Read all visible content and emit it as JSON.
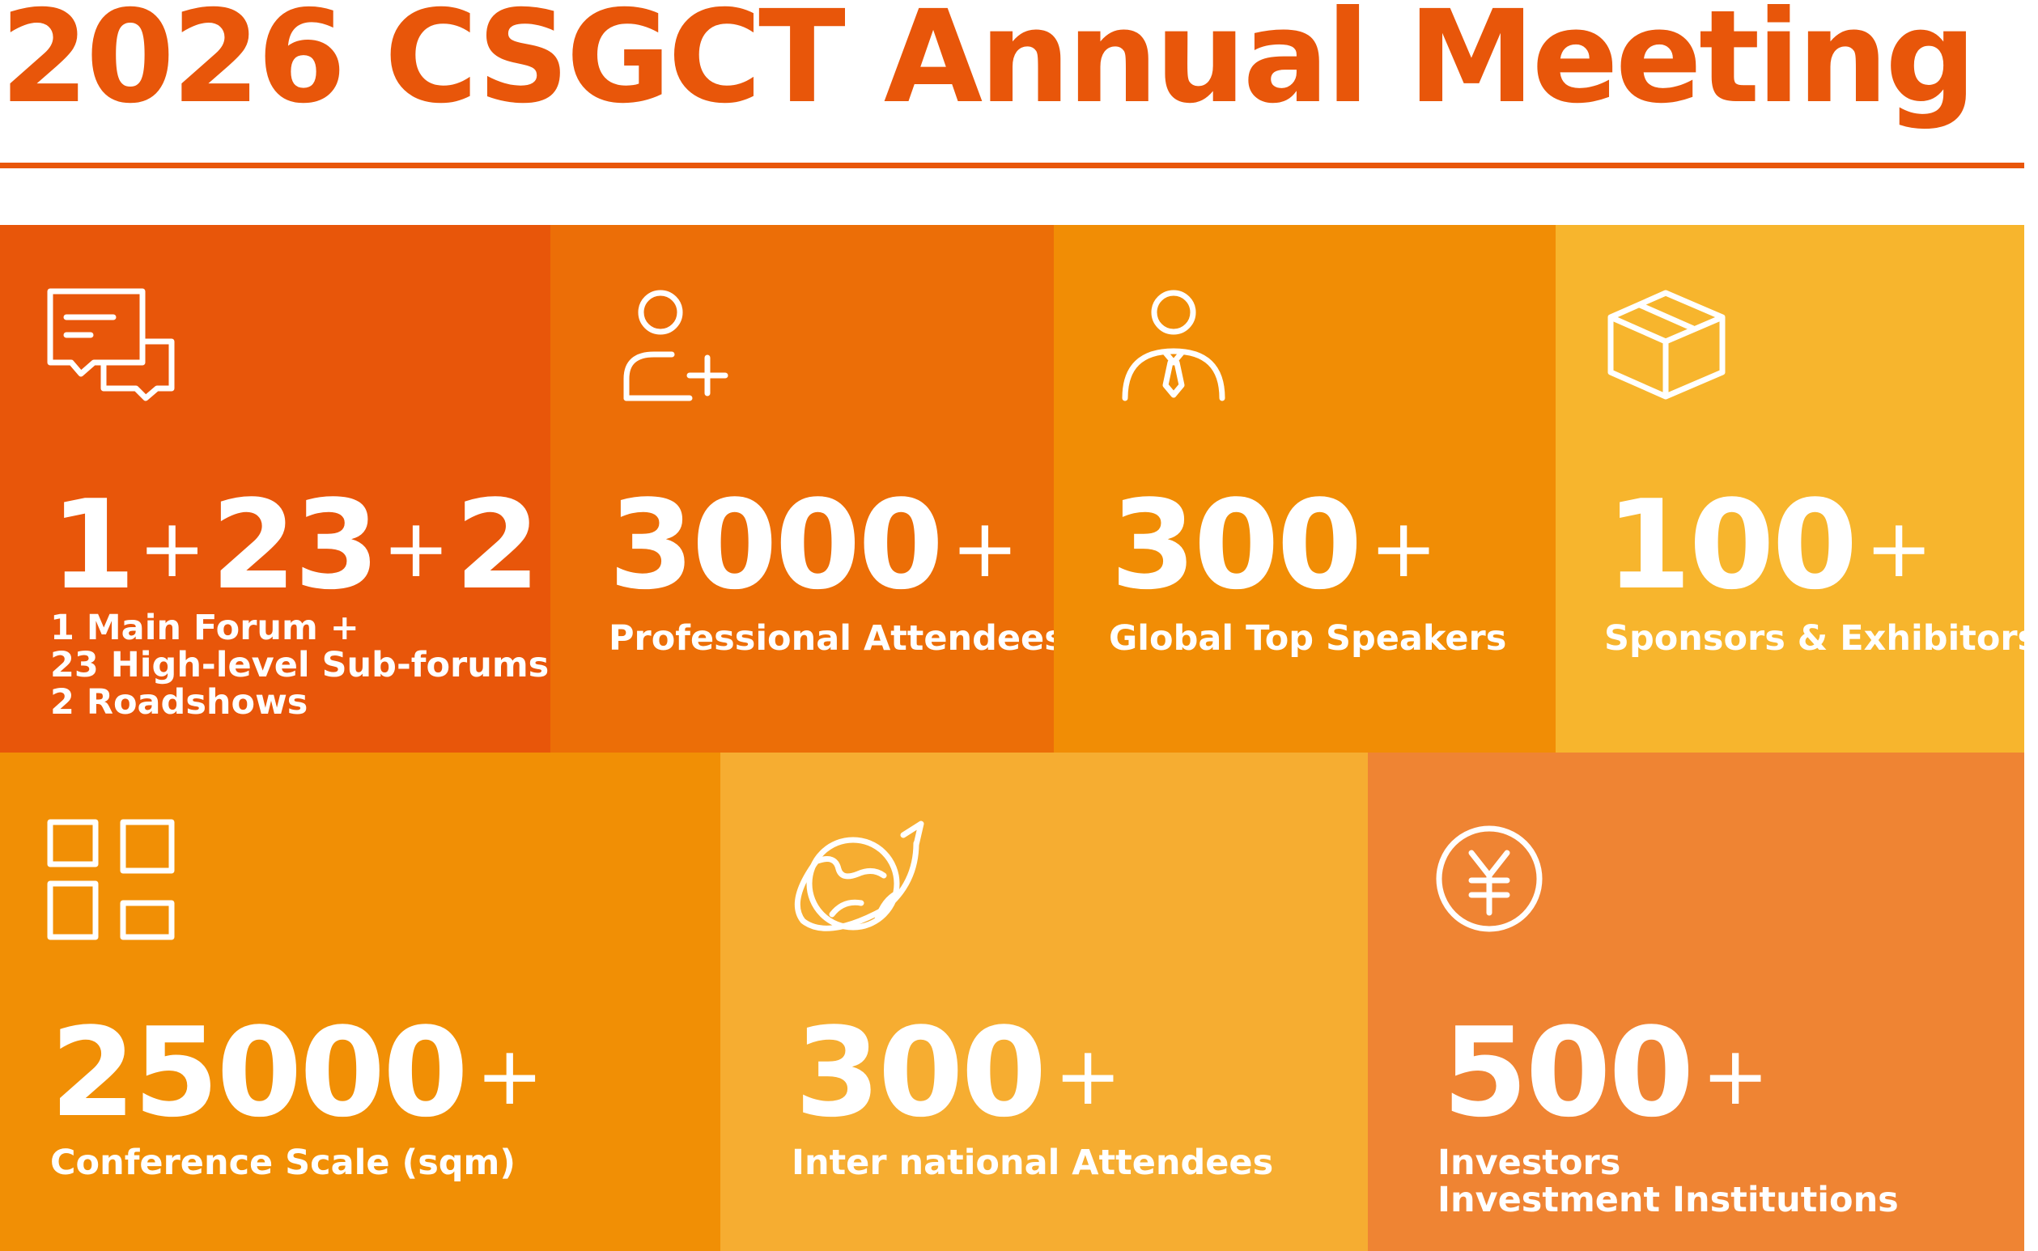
{
  "title": "2026 CSGCT Annual Meeting",
  "tiles": [
    {
      "id": "forums",
      "color": "#e8560a",
      "icon": "chat-bubbles-icon",
      "stat_parts": [
        "1",
        "+",
        "23",
        "+",
        "2"
      ],
      "label_lines": [
        "1 Main Forum +",
        "23 High-level Sub-forums +",
        "2 Roadshows"
      ]
    },
    {
      "id": "attendees",
      "color": "#ec6e07",
      "icon": "add-user-icon",
      "number": "3000",
      "suffix": "+",
      "label_lines": [
        "Professional Attendees"
      ]
    },
    {
      "id": "speakers",
      "color": "#f18d05",
      "icon": "speaker-person-icon",
      "number": "300",
      "suffix": "+",
      "label_lines": [
        "Global Top Speakers"
      ]
    },
    {
      "id": "sponsors",
      "color": "#f7b52d",
      "icon": "box-icon",
      "number": "100",
      "suffix": "+",
      "label_lines": [
        "Sponsors & Exhibitors"
      ]
    },
    {
      "id": "scale",
      "color": "#f18f05",
      "icon": "grid-icon",
      "number": "25000",
      "suffix": "+",
      "label_lines": [
        "Conference Scale (sqm)"
      ]
    },
    {
      "id": "international",
      "color": "#f6ad31",
      "icon": "planet-icon",
      "number": "300",
      "suffix": "+",
      "label_lines": [
        "Inter national Attendees"
      ]
    },
    {
      "id": "investors",
      "color": "#ef8433",
      "icon": "yen-coin-icon",
      "number": "500",
      "suffix": "+",
      "label_lines": [
        "Investors",
        "Investment Institutions"
      ]
    }
  ]
}
